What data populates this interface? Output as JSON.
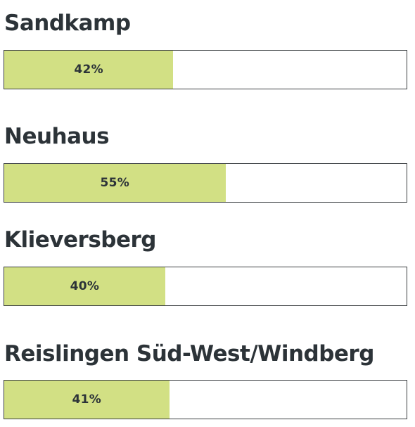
{
  "chart_data": {
    "type": "bar",
    "orientation": "horizontal",
    "categories": [
      "Sandkamp",
      "Neuhaus",
      "Klieversberg",
      "Reislingen Süd-West/Windberg"
    ],
    "values": [
      42,
      55,
      40,
      41
    ],
    "value_labels": [
      "42%",
      "55%",
      "40%",
      "41%"
    ],
    "unit": "%",
    "xlim": [
      0,
      100
    ],
    "colors": {
      "bar_fill": "#d2e084",
      "track_border": "#3b3f42",
      "text": "#2c3338"
    }
  }
}
